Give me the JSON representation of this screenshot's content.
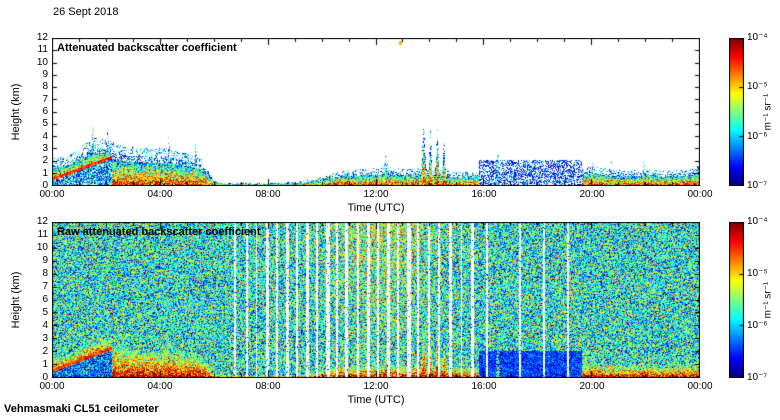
{
  "header": {
    "date": "26 Sept 2018"
  },
  "footer": {
    "station": "Vehmasmaki CL51 ceilometer"
  },
  "colors": {
    "axis": "#000000",
    "background": "#ffffff"
  },
  "colorbar": {
    "unit": "m⁻¹ sr⁻¹",
    "tick_labels": [
      "10⁻⁴",
      "10⁻⁵",
      "10⁻⁶",
      "10⁻⁷"
    ],
    "log10_range": [
      -7,
      -4
    ],
    "colormap": "jet"
  },
  "chart_data": [
    {
      "type": "heatmap",
      "title": "Attenuated backscatter coefficient",
      "xlabel": "Time (UTC)",
      "ylabel": "Height (km)",
      "x_ticks": [
        "00:00",
        "04:00",
        "08:00",
        "12:00",
        "16:00",
        "20:00",
        "00:00"
      ],
      "x_range_hours": [
        0,
        24
      ],
      "y_ticks": [
        "0",
        "1",
        "2",
        "3",
        "4",
        "5",
        "6",
        "7",
        "8",
        "9",
        "10",
        "11",
        "12"
      ],
      "y_range_km": [
        0,
        12
      ],
      "value_scale": "log10 attenuated backscatter 1e-7 to 1e-4 m-1 sr-1, jet colormap, white below range",
      "background": "white",
      "boundary_layer_top_km": [
        [
          0,
          1.7
        ],
        [
          0.6,
          1.9
        ],
        [
          1.0,
          2.4
        ],
        [
          1.5,
          3.0
        ],
        [
          2.0,
          2.9
        ],
        [
          2.6,
          2.5
        ],
        [
          3.2,
          2.4
        ],
        [
          3.8,
          2.3
        ],
        [
          4.2,
          2.4
        ],
        [
          4.7,
          2.1
        ],
        [
          5.1,
          2.0
        ],
        [
          5.5,
          1.7
        ],
        [
          5.8,
          1.0
        ],
        [
          6.0,
          0.3
        ],
        [
          6.5,
          0.22
        ],
        [
          7.5,
          0.2
        ],
        [
          8.5,
          0.22
        ],
        [
          9.3,
          0.3
        ],
        [
          9.8,
          0.5
        ],
        [
          10.3,
          0.8
        ],
        [
          11.0,
          1.0
        ],
        [
          11.8,
          1.1
        ],
        [
          12.4,
          1.2
        ],
        [
          13.0,
          1.05
        ],
        [
          13.6,
          1.1
        ],
        [
          14.0,
          1.0
        ],
        [
          14.6,
          0.95
        ],
        [
          15.2,
          0.85
        ],
        [
          15.8,
          0.9
        ],
        [
          17.0,
          0.95
        ],
        [
          18.0,
          1.0
        ],
        [
          19.0,
          1.0
        ],
        [
          19.6,
          1.1
        ],
        [
          20.1,
          1.25
        ],
        [
          20.6,
          1.05
        ],
        [
          21.2,
          0.95
        ],
        [
          21.9,
          1.05
        ],
        [
          22.5,
          0.95
        ],
        [
          23.2,
          1.0
        ],
        [
          23.7,
          1.1
        ],
        [
          24,
          1.3
        ]
      ],
      "cloud_spikes": [
        [
          1.5,
          4.0,
          0.07
        ],
        [
          2.05,
          3.6,
          0.06
        ],
        [
          4.3,
          3.1,
          0.05
        ],
        [
          5.3,
          2.6,
          0.05
        ],
        [
          12.35,
          1.9,
          0.07
        ],
        [
          13.75,
          3.8,
          0.06
        ],
        [
          14.0,
          3.4,
          0.05
        ],
        [
          14.25,
          3.6,
          0.05
        ],
        [
          14.5,
          2.9,
          0.05
        ],
        [
          16.5,
          2.6,
          0.06
        ],
        [
          20.0,
          1.7,
          0.05
        ],
        [
          20.7,
          1.5,
          0.04
        ],
        [
          21.9,
          1.6,
          0.04
        ],
        [
          23.9,
          1.8,
          0.05
        ]
      ],
      "morning_arc": {
        "t_end": 2.2,
        "h0": 0.55,
        "slope": 0.8
      },
      "haze_patch": {
        "t0": 15.8,
        "t1": 19.6,
        "top_km": 2.1
      },
      "speck": [
        12.9,
        11.6
      ]
    },
    {
      "type": "heatmap",
      "title": "Raw attenuated backscatter coefficient",
      "xlabel": "Time (UTC)",
      "ylabel": "Height (km)",
      "x_ticks": [
        "00:00",
        "04:00",
        "08:00",
        "12:00",
        "16:00",
        "20:00",
        "00:00"
      ],
      "x_range_hours": [
        0,
        24
      ],
      "y_ticks": [
        "0",
        "1",
        "2",
        "3",
        "4",
        "5",
        "6",
        "7",
        "8",
        "9",
        "10",
        "11",
        "12"
      ],
      "y_range_km": [
        0,
        12
      ],
      "value_scale": "log10 raw attenuated backscatter 1e-7 to 1e-4 m-1 sr-1, jet colormap, full-field noise",
      "background": "noise",
      "noise": {
        "mean_log10": -5.8,
        "sigma": 0.55,
        "warm_anomaly": {
          "t_center": 12.3,
          "t_sigma": 2.0,
          "amp": 0.45
        }
      },
      "data_gaps_hours": [
        [
          6.75,
          0.04
        ],
        [
          7.2,
          0.05
        ],
        [
          7.55,
          0.03
        ],
        [
          7.95,
          0.06
        ],
        [
          8.3,
          0.04
        ],
        [
          8.7,
          0.05
        ],
        [
          9.05,
          0.03
        ],
        [
          9.45,
          0.05
        ],
        [
          9.8,
          0.03
        ],
        [
          10.2,
          0.06
        ],
        [
          10.55,
          0.04
        ],
        [
          10.9,
          0.05
        ],
        [
          11.3,
          0.04
        ],
        [
          11.7,
          0.06
        ],
        [
          12.05,
          0.04
        ],
        [
          12.45,
          0.05
        ],
        [
          12.8,
          0.03
        ],
        [
          13.2,
          0.06
        ],
        [
          13.55,
          0.04
        ],
        [
          13.95,
          0.05
        ],
        [
          14.3,
          0.04
        ],
        [
          14.75,
          0.05
        ],
        [
          15.15,
          0.03
        ],
        [
          15.55,
          0.05
        ],
        [
          16.1,
          0.03
        ],
        [
          17.3,
          0.04
        ],
        [
          18.2,
          0.03
        ],
        [
          19.1,
          0.03
        ]
      ],
      "boundary_layer_top_km": [
        [
          0,
          1.7
        ],
        [
          0.6,
          1.9
        ],
        [
          1.0,
          2.4
        ],
        [
          1.5,
          3.0
        ],
        [
          2.0,
          2.9
        ],
        [
          2.6,
          2.5
        ],
        [
          3.2,
          2.4
        ],
        [
          3.8,
          2.3
        ],
        [
          4.2,
          2.4
        ],
        [
          4.7,
          2.1
        ],
        [
          5.1,
          2.0
        ],
        [
          5.5,
          1.7
        ],
        [
          5.8,
          1.0
        ],
        [
          6.0,
          0.3
        ],
        [
          6.5,
          0.22
        ],
        [
          7.5,
          0.2
        ],
        [
          8.5,
          0.22
        ],
        [
          9.3,
          0.3
        ],
        [
          9.8,
          0.5
        ],
        [
          10.3,
          0.8
        ],
        [
          11.0,
          1.0
        ],
        [
          11.8,
          1.1
        ],
        [
          12.4,
          1.2
        ],
        [
          13.0,
          1.05
        ],
        [
          13.6,
          1.1
        ],
        [
          14.0,
          1.0
        ],
        [
          14.6,
          0.95
        ],
        [
          15.2,
          0.85
        ],
        [
          15.8,
          0.9
        ],
        [
          17.0,
          0.95
        ],
        [
          18.0,
          1.0
        ],
        [
          19.0,
          1.0
        ],
        [
          19.6,
          1.1
        ],
        [
          20.1,
          1.25
        ],
        [
          20.6,
          1.05
        ],
        [
          21.2,
          0.95
        ],
        [
          21.9,
          1.05
        ],
        [
          22.5,
          0.95
        ],
        [
          23.2,
          1.0
        ],
        [
          23.7,
          1.1
        ],
        [
          24,
          1.3
        ]
      ],
      "cloud_spikes": [
        [
          1.5,
          4.0,
          0.07
        ],
        [
          2.05,
          3.6,
          0.06
        ],
        [
          4.3,
          3.1,
          0.05
        ],
        [
          5.3,
          2.6,
          0.05
        ],
        [
          12.35,
          1.9,
          0.07
        ],
        [
          13.75,
          3.8,
          0.06
        ],
        [
          14.0,
          3.4,
          0.05
        ],
        [
          14.25,
          3.6,
          0.05
        ],
        [
          14.5,
          2.9,
          0.05
        ],
        [
          16.5,
          2.6,
          0.06
        ],
        [
          20.0,
          1.7,
          0.05
        ],
        [
          20.7,
          1.5,
          0.04
        ],
        [
          21.9,
          1.6,
          0.04
        ],
        [
          23.9,
          1.8,
          0.05
        ]
      ],
      "morning_arc": {
        "t_end": 2.2,
        "h0": 0.55,
        "slope": 0.8
      },
      "haze_patch": {
        "t0": 15.8,
        "t1": 19.6,
        "top_km": 2.1
      }
    }
  ]
}
